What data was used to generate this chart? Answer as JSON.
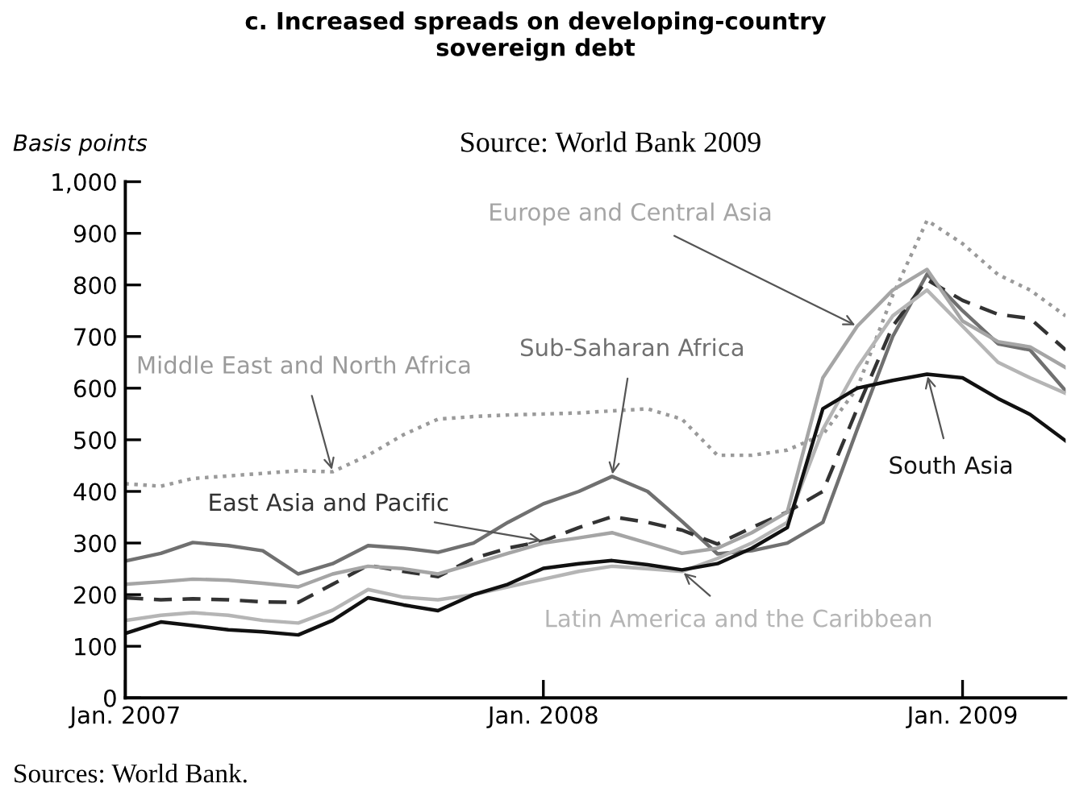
{
  "chart_data": {
    "type": "line",
    "title": "c. Increased spreads on developing-country\nsovereign debt",
    "subtitle": "Source: World Bank 2009",
    "ylabel": "Basis points",
    "x": [
      "2007-01",
      "2007-02",
      "2007-03",
      "2007-04",
      "2007-05",
      "2007-06",
      "2007-07",
      "2007-08",
      "2007-09",
      "2007-10",
      "2007-11",
      "2007-12",
      "2008-01",
      "2008-02",
      "2008-03",
      "2008-04",
      "2008-05",
      "2008-06",
      "2008-07",
      "2008-08",
      "2008-09",
      "2008-10",
      "2008-11",
      "2008-12",
      "2009-01",
      "2009-02",
      "2009-03",
      "2009-04"
    ],
    "series": [
      {
        "name": "Middle East and North Africa",
        "color": "#9a9a9a",
        "line_style": "dotted",
        "values": [
          415,
          410,
          425,
          430,
          435,
          440,
          438,
          470,
          510,
          540,
          545,
          548,
          550,
          552,
          556,
          560,
          540,
          470,
          470,
          480,
          510,
          600,
          780,
          925,
          880,
          820,
          790,
          740
        ]
      },
      {
        "name": "Sub-Saharan Africa",
        "color": "#707070",
        "line_style": "solid",
        "values": [
          265,
          280,
          301,
          295,
          285,
          240,
          260,
          295,
          290,
          282,
          300,
          340,
          376,
          400,
          429,
          400,
          342,
          279,
          285,
          300,
          340,
          520,
          700,
          821,
          750,
          686,
          674,
          595
        ]
      },
      {
        "name": "East Asia and Pacific",
        "color": "#333333",
        "line_style": "dashed",
        "values": [
          194,
          190,
          192,
          190,
          186,
          185,
          220,
          257,
          245,
          235,
          270,
          290,
          304,
          330,
          351,
          340,
          325,
          298,
          330,
          360,
          400,
          560,
          720,
          810,
          770,
          743,
          735,
          674
        ]
      },
      {
        "name": "Latin America and the Caribbean",
        "color": "#b5b5b5",
        "line_style": "solid",
        "values": [
          150,
          160,
          165,
          160,
          150,
          145,
          170,
          210,
          195,
          190,
          200,
          215,
          230,
          245,
          255,
          250,
          245,
          270,
          300,
          340,
          520,
          640,
          740,
          790,
          720,
          650,
          620,
          590
        ]
      },
      {
        "name": "South Asia",
        "color": "#111111",
        "line_style": "solid",
        "values": [
          125,
          147,
          140,
          132,
          128,
          122,
          150,
          194,
          180,
          169,
          200,
          220,
          251,
          260,
          266,
          258,
          248,
          260,
          290,
          330,
          560,
          600,
          615,
          627,
          620,
          580,
          549,
          498
        ]
      },
      {
        "name": "Europe and Central Asia",
        "color": "#a5a5a5",
        "line_style": "solid",
        "values": [
          220,
          225,
          230,
          228,
          222,
          215,
          240,
          255,
          250,
          240,
          260,
          280,
          300,
          310,
          320,
          300,
          280,
          290,
          320,
          360,
          620,
          720,
          790,
          830,
          730,
          690,
          680,
          640
        ]
      }
    ],
    "xlim": [
      "2007-01",
      "2009-04"
    ],
    "xticks": [
      {
        "value": "2007-01",
        "label": "Jan. 2007"
      },
      {
        "value": "2008-01",
        "label": "Jan. 2008"
      },
      {
        "value": "2009-01",
        "label": "Jan. 2009"
      }
    ],
    "ylim": [
      0,
      1000
    ],
    "yticks": [
      0,
      {
        "value": 100,
        "label": "100"
      },
      200,
      300,
      400,
      500,
      600,
      700,
      800,
      900,
      {
        "value": 1000,
        "label": "1,000"
      }
    ],
    "grid": false,
    "legend": false,
    "marker": "none",
    "annotations": [
      "Sources: World Bank."
    ]
  }
}
